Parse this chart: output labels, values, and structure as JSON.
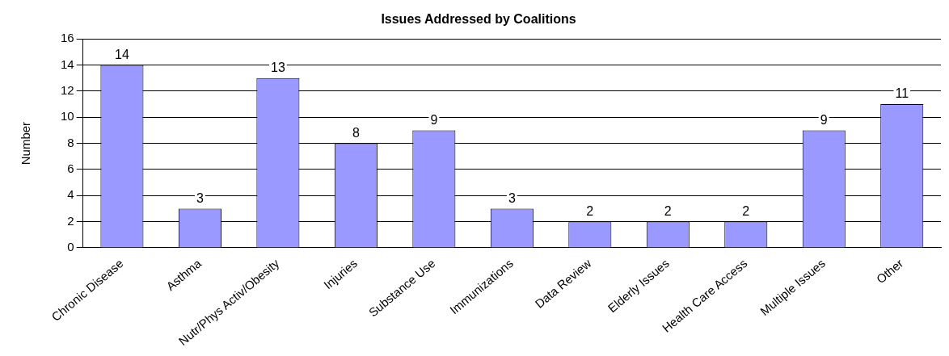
{
  "chart_data": {
    "type": "bar",
    "title": "Issues Addressed by Coalitions",
    "ylabel": "Number",
    "categories": [
      "Chronic Disease",
      "Asthma",
      "Nutr/Phys Activ/Obesity",
      "Injuries",
      "Substance Use",
      "Immunizations",
      "Data Review",
      "Elderly Issues",
      "Health Care Access",
      "Multiple Issues",
      "Other"
    ],
    "values": [
      14,
      3,
      13,
      8,
      9,
      3,
      2,
      2,
      2,
      9,
      11
    ],
    "color": "#9999ff",
    "ylim": [
      0,
      16
    ],
    "yticks": [
      0,
      2,
      4,
      6,
      8,
      10,
      12,
      14,
      16
    ],
    "grid": "y",
    "data_labels": true
  }
}
